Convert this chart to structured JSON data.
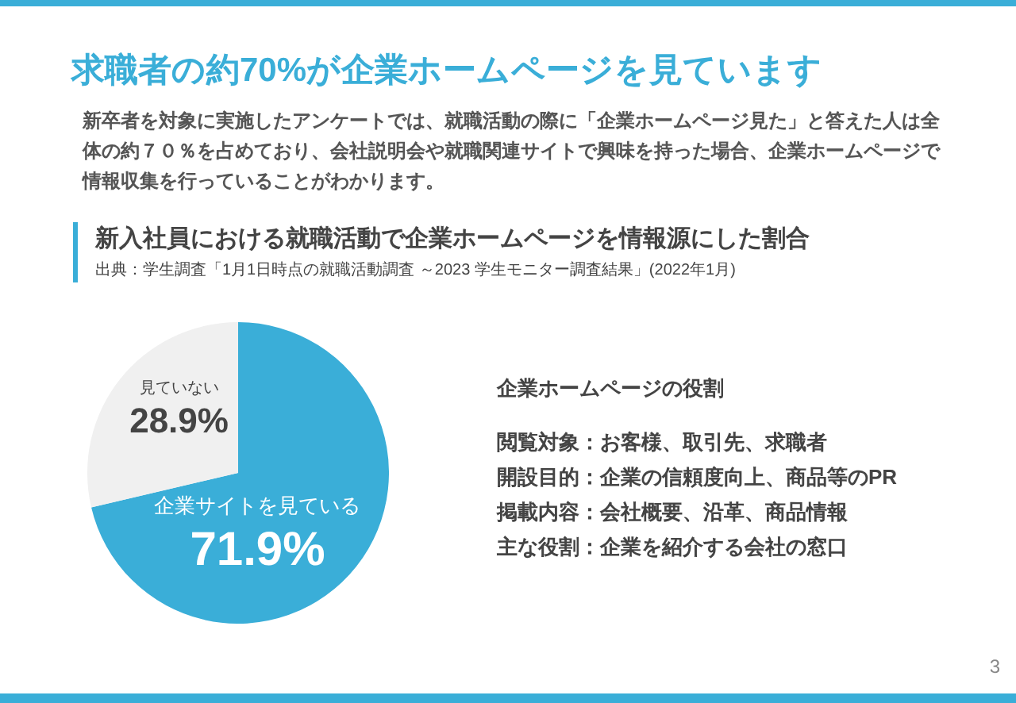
{
  "chart_data": {
    "type": "pie",
    "title": "求職者の約70%が企業ホームページを見ています",
    "subtitle": "新入社員における就職活動で企業ホームページを情報源にした割合",
    "annotations": [
      "新卒者を対象に実施したアンケートでは、就職活動の際に「企業ホームページ見た」と答えた人は全体の約７０％を占めており、会社説明会や就職関連サイトで興味を持った場合、企業ホームページで情報収集を行っていることがわかります。",
      "出典：学生調査「1月1日時点の就職活動調査 ～2023 学生モニター調査結果」(2022年1月)",
      "企業ホームページの役割",
      "閲覧対象：お客様、取引先、求職者",
      "開設目的：企業の信頼度向上、商品等のPR",
      "掲載内容：会社概要、沿革、商品情報",
      "主な役割：企業を紹介する会社の窓口",
      "3"
    ],
    "categories": [
      "企業サイトを見ている",
      "見ていない"
    ],
    "values": [
      71.9,
      28.9
    ],
    "colors": [
      "#3aaed8",
      "#f0f0f0"
    ],
    "value_labels": [
      "71.9%",
      "28.9%"
    ],
    "legend": false
  }
}
